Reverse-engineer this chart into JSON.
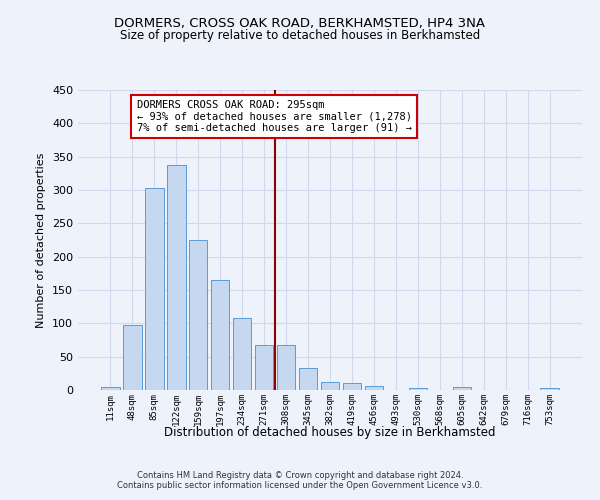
{
  "title": "DORMERS, CROSS OAK ROAD, BERKHAMSTED, HP4 3NA",
  "subtitle": "Size of property relative to detached houses in Berkhamsted",
  "xlabel": "Distribution of detached houses by size in Berkhamsted",
  "ylabel": "Number of detached properties",
  "footnote1": "Contains HM Land Registry data © Crown copyright and database right 2024.",
  "footnote2": "Contains public sector information licensed under the Open Government Licence v3.0.",
  "bar_labels": [
    "11sqm",
    "48sqm",
    "85sqm",
    "122sqm",
    "159sqm",
    "197sqm",
    "234sqm",
    "271sqm",
    "308sqm",
    "345sqm",
    "382sqm",
    "419sqm",
    "456sqm",
    "493sqm",
    "530sqm",
    "568sqm",
    "605sqm",
    "642sqm",
    "679sqm",
    "716sqm",
    "753sqm"
  ],
  "bar_values": [
    5,
    98,
    303,
    338,
    225,
    165,
    108,
    67,
    67,
    33,
    12,
    11,
    6,
    0,
    3,
    0,
    4,
    0,
    0,
    0,
    3
  ],
  "bar_color": "#c5d8f0",
  "bar_edge_color": "#5b9bd5",
  "background_color": "#eef2fb",
  "ylim": [
    0,
    450
  ],
  "yticks": [
    0,
    50,
    100,
    150,
    200,
    250,
    300,
    350,
    400,
    450
  ],
  "vline_x": 7.5,
  "vline_color": "#8b0000",
  "annotation_title": "DORMERS CROSS OAK ROAD: 295sqm",
  "annotation_line1": "← 93% of detached houses are smaller (1,278)",
  "annotation_line2": "7% of semi-detached houses are larger (91) →",
  "annotation_box_color": "#ffffff",
  "annotation_box_edge": "#cc0000",
  "grid_color": "#d0d8ee",
  "title_fontsize": 9.5,
  "subtitle_fontsize": 8.5
}
